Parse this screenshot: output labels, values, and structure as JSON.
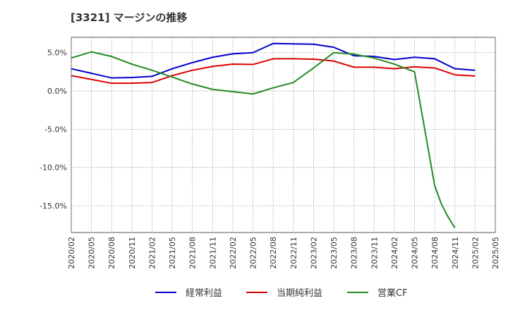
{
  "title": "[3321]  マージンの推移",
  "chart_data": {
    "type": "line",
    "x": [
      "2020/02",
      "2020/05",
      "2020/08",
      "2020/11",
      "2021/02",
      "2021/05",
      "2021/08",
      "2021/11",
      "2022/02",
      "2022/05",
      "2022/08",
      "2022/11",
      "2023/02",
      "2023/05",
      "2023/08",
      "2023/11",
      "2024/02",
      "2024/05",
      "2024/08",
      "2024/11",
      "2025/02",
      "2025/05"
    ],
    "yticks": [
      "5.0%",
      "0.0%",
      "-5.0%",
      "-10.0%",
      "-15.0%"
    ],
    "ytick_values": [
      5,
      0,
      -5,
      -10,
      -15
    ],
    "ylim": [
      -18.5,
      7
    ],
    "grid": true,
    "legend_position": "bottom",
    "series": [
      {
        "name": "経常利益",
        "color": "#0000cc",
        "points": [
          [
            "2020/02",
            2.9
          ],
          [
            "2020/05",
            2.3
          ],
          [
            "2020/08",
            1.7
          ],
          [
            "2020/11",
            1.75
          ],
          [
            "2021/02",
            1.9
          ],
          [
            "2021/05",
            2.9
          ],
          [
            "2021/08",
            3.7
          ],
          [
            "2021/11",
            4.4
          ],
          [
            "2022/02",
            4.85
          ],
          [
            "2022/05",
            5.0
          ],
          [
            "2022/08",
            6.2
          ],
          [
            "2022/11",
            6.15
          ],
          [
            "2023/02",
            6.1
          ],
          [
            "2023/05",
            5.7
          ],
          [
            "2023/08",
            4.6
          ],
          [
            "2023/11",
            4.5
          ],
          [
            "2024/02",
            4.1
          ],
          [
            "2024/05",
            4.4
          ],
          [
            "2024/08",
            4.2
          ],
          [
            "2024/11",
            2.9
          ],
          [
            "2025/02",
            2.7
          ]
        ]
      },
      {
        "name": "当期純利益",
        "color": "#dd0000",
        "points": [
          [
            "2020/02",
            2.0
          ],
          [
            "2020/05",
            1.5
          ],
          [
            "2020/08",
            1.0
          ],
          [
            "2020/11",
            1.0
          ],
          [
            "2021/02",
            1.1
          ],
          [
            "2021/05",
            2.0
          ],
          [
            "2021/08",
            2.7
          ],
          [
            "2021/11",
            3.2
          ],
          [
            "2022/02",
            3.5
          ],
          [
            "2022/05",
            3.45
          ],
          [
            "2022/08",
            4.2
          ],
          [
            "2022/11",
            4.2
          ],
          [
            "2023/02",
            4.15
          ],
          [
            "2023/05",
            3.9
          ],
          [
            "2023/08",
            3.1
          ],
          [
            "2023/11",
            3.1
          ],
          [
            "2024/02",
            2.9
          ],
          [
            "2024/05",
            3.15
          ],
          [
            "2024/08",
            3.0
          ],
          [
            "2024/11",
            2.1
          ],
          [
            "2025/02",
            1.95
          ]
        ]
      },
      {
        "name": "営業CF",
        "color": "#228b22",
        "points": [
          [
            "2020/02",
            4.3
          ],
          [
            "2020/05",
            5.1
          ],
          [
            "2020/08",
            4.5
          ],
          [
            "2020/11",
            3.5
          ],
          [
            "2021/02",
            2.7
          ],
          [
            "2021/05",
            1.8
          ],
          [
            "2021/08",
            0.9
          ],
          [
            "2021/11",
            0.2
          ],
          [
            "2022/02",
            -0.1
          ],
          [
            "2022/05",
            -0.4
          ],
          [
            "2022/08",
            0.4
          ],
          [
            "2022/11",
            1.1
          ],
          [
            "2023/02",
            3.0
          ],
          [
            "2023/05",
            5.0
          ],
          [
            "2023/08",
            4.8
          ],
          [
            "2023/11",
            4.3
          ],
          [
            "2024/02",
            3.5
          ],
          [
            "2024/05",
            2.5
          ],
          [
            "2024/08",
            -12.4
          ],
          [
            "2024/09",
            -14.8
          ],
          [
            "2024/10",
            -16.5
          ],
          [
            "2024/11",
            -17.9
          ]
        ]
      }
    ]
  }
}
